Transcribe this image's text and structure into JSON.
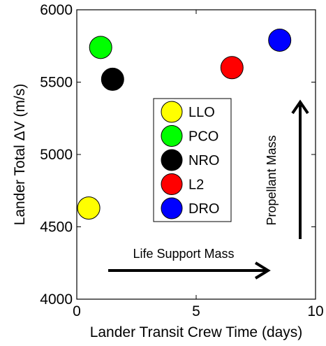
{
  "chart_data": {
    "type": "scatter",
    "xlabel": "Lander Transit Crew Time (days)",
    "ylabel": "Lander Total ΔV (m/s)",
    "xlim": [
      0,
      10
    ],
    "ylim": [
      4000,
      6000
    ],
    "x_ticks": [
      0,
      5,
      10
    ],
    "y_ticks": [
      4000,
      4500,
      5000,
      5500,
      6000
    ],
    "x_tick_labels": [
      "0",
      "5",
      "10"
    ],
    "y_tick_labels": [
      "4000",
      "4500",
      "5000",
      "5500",
      "6000"
    ],
    "grid": false,
    "legend_position": "center",
    "series": [
      {
        "name": "LLO",
        "color": "#ffff00",
        "x": [
          0.5
        ],
        "y": [
          4630
        ]
      },
      {
        "name": "PCO",
        "color": "#00ff00",
        "x": [
          1.0
        ],
        "y": [
          5740
        ]
      },
      {
        "name": "NRO",
        "color": "#000000",
        "x": [
          1.5
        ],
        "y": [
          5520
        ]
      },
      {
        "name": "L2",
        "color": "#ff0000",
        "x": [
          6.5
        ],
        "y": [
          5600
        ]
      },
      {
        "name": "DRO",
        "color": "#0000ff",
        "x": [
          8.5
        ],
        "y": [
          5790
        ]
      }
    ],
    "annotations": [
      {
        "name": "life-support",
        "text": "Life Support Mass",
        "direction": "right"
      },
      {
        "name": "propellant",
        "text": "Propellant Mass",
        "direction": "up"
      }
    ]
  }
}
